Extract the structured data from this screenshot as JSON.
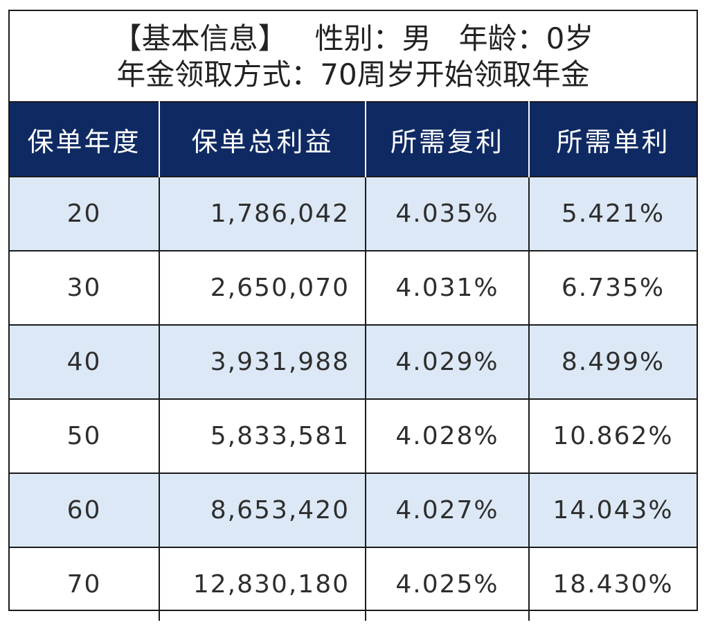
{
  "info": {
    "line1": "【基本信息】   性别：男   年龄：0岁",
    "line2": "年金领取方式：70周岁开始领取年金"
  },
  "table": {
    "headers": [
      "保单年度",
      "保单总利益",
      "所需复利",
      "所需单利"
    ],
    "rows": [
      [
        "20",
        "1,786,042",
        "4.035%",
        "5.421%"
      ],
      [
        "30",
        "2,650,070",
        "4.031%",
        "6.735%"
      ],
      [
        "40",
        "3,931,988",
        "4.029%",
        "8.499%"
      ],
      [
        "50",
        "5,833,581",
        "4.028%",
        "10.862%"
      ],
      [
        "60",
        "8,653,420",
        "4.027%",
        "14.043%"
      ],
      [
        "70",
        "12,830,180",
        "4.025%",
        "18.430%"
      ]
    ]
  },
  "colors": {
    "header_bg": "#0f2a63",
    "row_shade": "#dce8f5",
    "border": "#1a1a1a"
  }
}
